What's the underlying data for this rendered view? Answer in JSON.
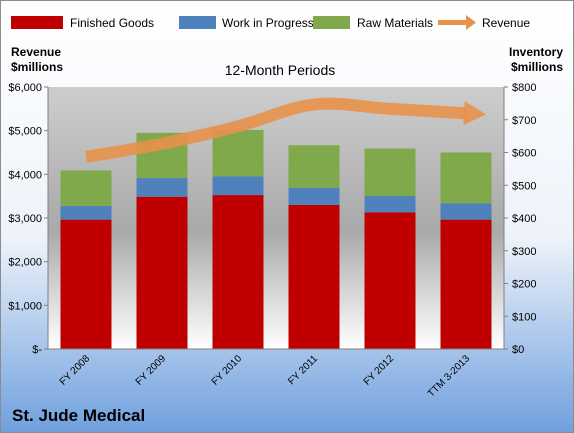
{
  "company": "St. Jude Medical",
  "chart_data": {
    "type": "bar",
    "stacked": true,
    "title": "12-Month Periods",
    "categories": [
      "FY 2008",
      "FY 2009",
      "FY 2010",
      "FY 2011",
      "FY 2012",
      "TTM 3-2013"
    ],
    "series": [
      {
        "name": "Finished Goods",
        "axis": "right",
        "color": "#C00000",
        "values": [
          395,
          465,
          470,
          440,
          417,
          395
        ]
      },
      {
        "name": "Work in Progress",
        "axis": "right",
        "color": "#4F81BD",
        "values": [
          42,
          57,
          57,
          52,
          50,
          50
        ]
      },
      {
        "name": "Raw Materials",
        "axis": "right",
        "color": "#7FA94A",
        "values": [
          108,
          138,
          142,
          130,
          145,
          155
        ]
      },
      {
        "name": "Revenue",
        "type": "line",
        "axis": "left",
        "color": "#E8914A",
        "values": [
          4400,
          4700,
          5100,
          5600,
          5500,
          5400
        ]
      }
    ],
    "left_axis": {
      "label_line1": "Revenue",
      "label_line2": "$millions",
      "ylim": [
        0,
        6000
      ],
      "ticks": [
        "$-",
        "$1,000",
        "$2,000",
        "$3,000",
        "$4,000",
        "$5,000",
        "$6,000"
      ]
    },
    "right_axis": {
      "label_line1": "Inventory",
      "label_line2": "$millions",
      "ylim": [
        0,
        800
      ],
      "ticks": [
        "$0",
        "$100",
        "$200",
        "$300",
        "$400",
        "$500",
        "$600",
        "$700",
        "$800"
      ]
    },
    "grid": false,
    "legend_position": "top"
  }
}
